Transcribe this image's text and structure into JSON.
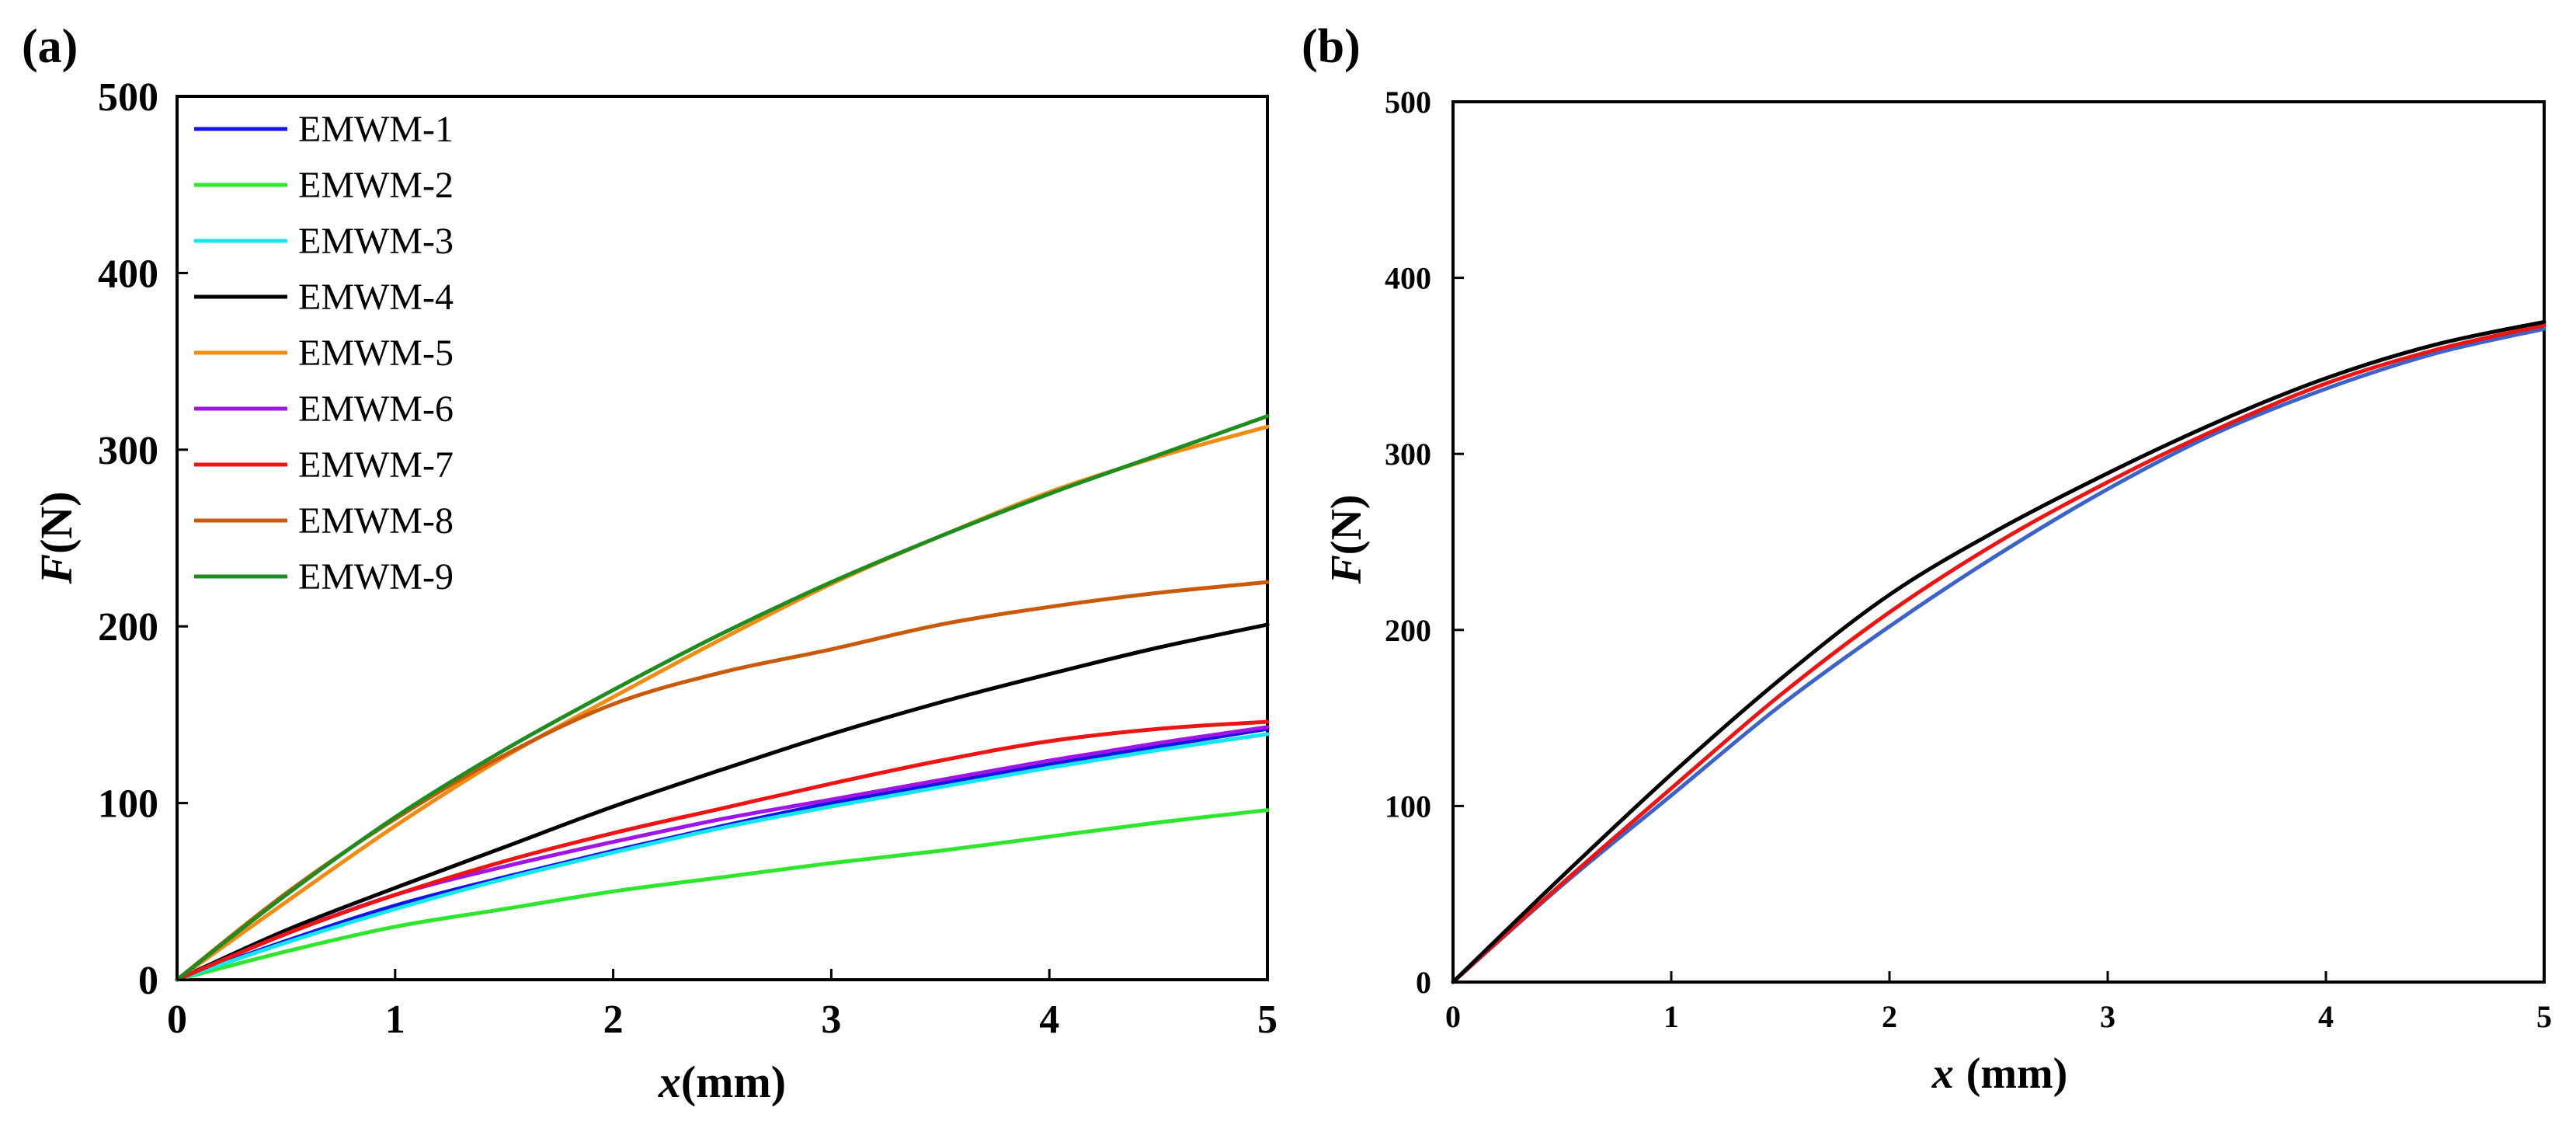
{
  "figure": {
    "panels": [
      {
        "label": "(a)",
        "xlabel_var": "x",
        "xlabel_unit": "(mm)",
        "ylabel_var": "F",
        "ylabel_unit": "(N)"
      },
      {
        "label": "(b)",
        "xlabel_var": "x",
        "xlabel_unit": "(mm)",
        "ylabel_var": "F",
        "ylabel_unit": "(N)"
      }
    ]
  },
  "chart_data": [
    {
      "type": "line",
      "title": "(a)",
      "xlabel": "x(mm)",
      "ylabel": "F(N)",
      "xlim": [
        0,
        5
      ],
      "ylim": [
        0,
        500
      ],
      "xticks": [
        "0",
        "1",
        "2",
        "3",
        "4",
        "5"
      ],
      "yticks": [
        "0",
        "100",
        "200",
        "300",
        "400",
        "500"
      ],
      "grid": false,
      "legend_position": "top-left",
      "series": [
        {
          "name": "EMWM-1",
          "color": "#1414e6",
          "x": [
            0,
            0.5,
            1,
            1.5,
            2,
            2.5,
            3,
            3.5,
            4,
            4.5,
            5
          ],
          "y": [
            0,
            22,
            42,
            58,
            73,
            87,
            100,
            111,
            122,
            132,
            142
          ]
        },
        {
          "name": "EMWM-2",
          "color": "#2ee62e",
          "x": [
            0,
            0.5,
            1,
            1.5,
            2,
            2.5,
            3,
            3.5,
            4,
            4.5,
            5
          ],
          "y": [
            0,
            16,
            30,
            40,
            50,
            58,
            66,
            73,
            81,
            89,
            96
          ]
        },
        {
          "name": "EMWM-3",
          "color": "#14e6f0",
          "x": [
            0,
            0.5,
            1,
            1.5,
            2,
            2.5,
            3,
            3.5,
            4,
            4.5,
            5
          ],
          "y": [
            0,
            21,
            40,
            57,
            72,
            86,
            98,
            109,
            120,
            130,
            139
          ]
        },
        {
          "name": "EMWM-4",
          "color": "#000000",
          "x": [
            0,
            0.5,
            1,
            1.5,
            2,
            2.5,
            3,
            3.5,
            4,
            4.5,
            5
          ],
          "y": [
            0,
            28,
            52,
            75,
            98,
            119,
            139,
            157,
            173,
            188,
            201
          ]
        },
        {
          "name": "EMWM-5",
          "color": "#f08c14",
          "x": [
            0,
            0.5,
            1,
            1.5,
            2,
            2.5,
            3,
            3.5,
            4,
            4.5,
            5
          ],
          "y": [
            0,
            44,
            87,
            126,
            160,
            193,
            224,
            251,
            276,
            296,
            313
          ]
        },
        {
          "name": "EMWM-6",
          "color": "#a014e6",
          "x": [
            0,
            0.5,
            1,
            1.5,
            2,
            2.5,
            3,
            3.5,
            4,
            4.5,
            5
          ],
          "y": [
            0,
            26,
            48,
            64,
            78,
            91,
            102,
            113,
            124,
            134,
            143
          ]
        },
        {
          "name": "EMWM-7",
          "color": "#ee1414",
          "x": [
            0,
            0.5,
            1,
            1.5,
            2,
            2.5,
            3,
            3.5,
            4,
            4.5,
            5
          ],
          "y": [
            0,
            26,
            48,
            67,
            83,
            97,
            111,
            124,
            135,
            142,
            146
          ]
        },
        {
          "name": "EMWM-8",
          "color": "#c85a0a",
          "x": [
            0,
            0.5,
            1,
            1.5,
            2,
            2.5,
            3,
            3.5,
            4,
            4.5,
            5
          ],
          "y": [
            0,
            49,
            91,
            127,
            156,
            174,
            187,
            201,
            211,
            219,
            225
          ]
        },
        {
          "name": "EMWM-9",
          "color": "#1e8c1e",
          "x": [
            0,
            0.5,
            1,
            1.5,
            2,
            2.5,
            3,
            3.5,
            4,
            4.5,
            5
          ],
          "y": [
            0,
            48,
            92,
            130,
            164,
            196,
            225,
            251,
            275,
            297,
            319
          ]
        }
      ]
    },
    {
      "type": "line",
      "title": "(b)",
      "xlabel": "x (mm)",
      "ylabel": "F(N)",
      "xlim": [
        0,
        5
      ],
      "ylim": [
        0,
        500
      ],
      "xticks": [
        "0",
        "1",
        "2",
        "3",
        "4",
        "5"
      ],
      "yticks": [
        "0",
        "100",
        "200",
        "300",
        "400",
        "500"
      ],
      "grid": false,
      "series": [
        {
          "name": "blue curve",
          "color": "#3c64c8",
          "x": [
            0,
            0.5,
            1,
            1.5,
            2,
            2.5,
            3,
            3.5,
            4,
            4.5,
            5
          ],
          "y": [
            0,
            55,
            106,
            157,
            202,
            243,
            280,
            312,
            337,
            357,
            371
          ]
        },
        {
          "name": "red curve",
          "color": "#ee1414",
          "x": [
            0,
            0.5,
            1,
            1.5,
            2,
            2.5,
            3,
            3.5,
            4,
            4.5,
            5
          ],
          "y": [
            0,
            56,
            110,
            163,
            210,
            250,
            284,
            314,
            340,
            359,
            373
          ]
        },
        {
          "name": "black curve",
          "color": "#000000",
          "x": [
            0,
            0.5,
            1,
            1.5,
            2,
            2.5,
            3,
            3.5,
            4,
            4.5,
            5
          ],
          "y": [
            0,
            60,
            118,
            172,
            220,
            257,
            289,
            318,
            343,
            362,
            375
          ]
        }
      ]
    }
  ]
}
